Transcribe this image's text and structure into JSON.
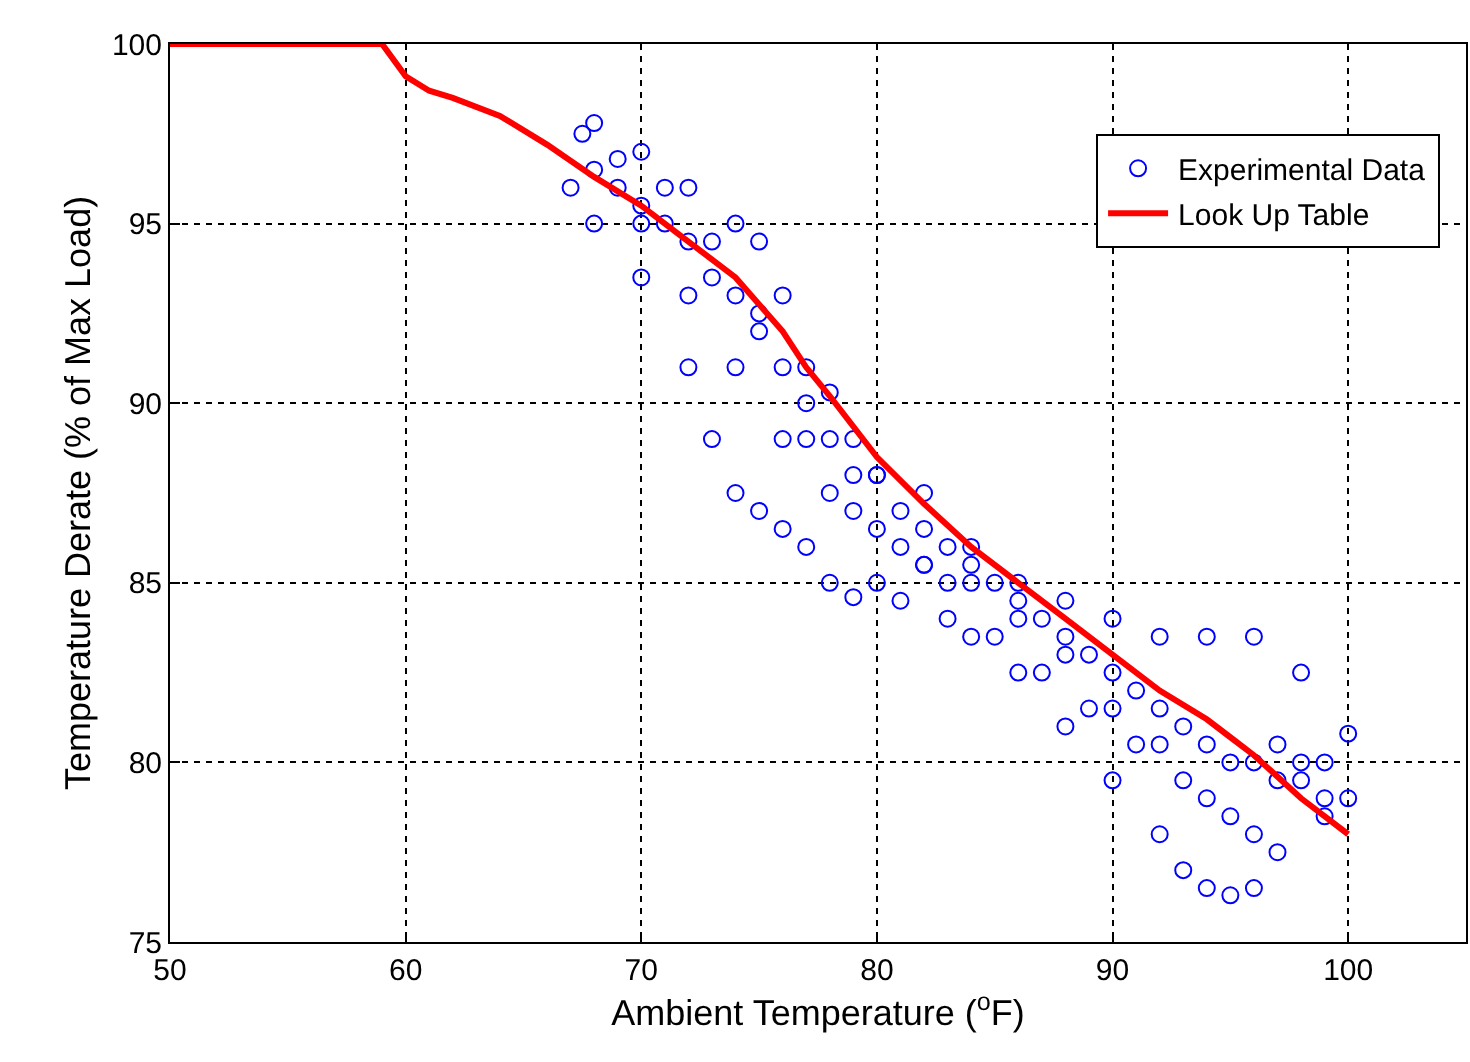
{
  "chart_data": {
    "type": "scatter",
    "xlabel": "Ambient Temperature ($^{o}$F)",
    "ylabel": "Temperature Derate (% of Max Load)",
    "xlim": [
      50,
      105
    ],
    "xticks": [
      50,
      60,
      70,
      80,
      90,
      100
    ],
    "ylim": [
      75,
      100
    ],
    "yticks": [
      75,
      80,
      85,
      90,
      95,
      100
    ],
    "grid": true,
    "legend": "top right",
    "series": [
      {
        "name": "Experimental Data",
        "color": "#0000ff",
        "marker": "circle",
        "x": [
          67.5,
          68,
          70,
          72,
          74,
          75,
          76,
          77,
          78,
          79,
          80,
          82,
          84,
          86,
          88,
          90,
          92,
          94,
          96,
          98,
          100,
          67,
          68,
          70,
          72,
          73,
          74,
          75,
          76,
          77,
          78,
          79,
          80,
          81,
          82,
          83,
          84,
          86,
          88,
          90,
          92,
          93,
          94,
          95,
          96,
          97,
          99,
          100,
          68,
          69,
          70,
          71,
          72,
          73,
          74,
          75,
          76,
          77,
          78,
          79,
          80,
          81,
          82,
          83,
          84,
          85,
          86,
          87,
          88,
          89,
          90,
          91,
          92,
          93,
          94,
          95,
          96,
          97,
          98,
          99,
          69,
          71,
          73,
          75,
          77,
          79,
          81,
          83,
          85,
          87,
          89,
          91,
          93,
          95,
          97,
          99,
          70,
          72,
          74,
          76,
          78,
          80,
          82,
          84,
          86,
          88,
          90,
          92,
          94,
          96,
          98
        ],
        "values": [
          97.5,
          97.8,
          97,
          96,
          95,
          94.5,
          93,
          91,
          90.3,
          89,
          88,
          87.5,
          86,
          85,
          84.5,
          84,
          83.5,
          83.5,
          83.5,
          82.5,
          80.8,
          96,
          95,
          93.5,
          91,
          89,
          87.5,
          87,
          86.5,
          86,
          85,
          84.6,
          85,
          84.5,
          85.5,
          84,
          83.5,
          82.5,
          81,
          79.5,
          78,
          77,
          76.5,
          76.3,
          76.5,
          77.5,
          78.5,
          79,
          96.5,
          96,
          95.5,
          95,
          94.5,
          93.5,
          93,
          92,
          91,
          90,
          89,
          88,
          88,
          87,
          86.5,
          86,
          85.5,
          85,
          84.5,
          84,
          83.5,
          83,
          82.5,
          82,
          81.5,
          81,
          80.5,
          80,
          80,
          79.5,
          79.5,
          79,
          96.8,
          96,
          94.5,
          92.5,
          89,
          87,
          86,
          85,
          83.5,
          82.5,
          81.5,
          80.5,
          79.5,
          78.5,
          80.5,
          80,
          95,
          93,
          91,
          89,
          87.5,
          86.5,
          85.5,
          85,
          84,
          83,
          81.5,
          80.5,
          79,
          78,
          80
        ]
      },
      {
        "name": "Look Up Table",
        "color": "#ff0000",
        "type": "line",
        "marker": "none",
        "line_style": "solid",
        "x": [
          50,
          59,
          60,
          61,
          62,
          64,
          66,
          68,
          70,
          72,
          74,
          76,
          77,
          78,
          80,
          82,
          84,
          86,
          88,
          90,
          92,
          94,
          95,
          96,
          98,
          100
        ],
        "values": [
          100,
          100,
          99.1,
          98.7,
          98.5,
          98,
          97.2,
          96.3,
          95.5,
          94.5,
          93.5,
          92,
          91,
          90.2,
          88.5,
          87.2,
          86,
          85,
          84,
          83,
          82,
          81.2,
          80.7,
          80.2,
          79,
          78
        ]
      }
    ]
  }
}
